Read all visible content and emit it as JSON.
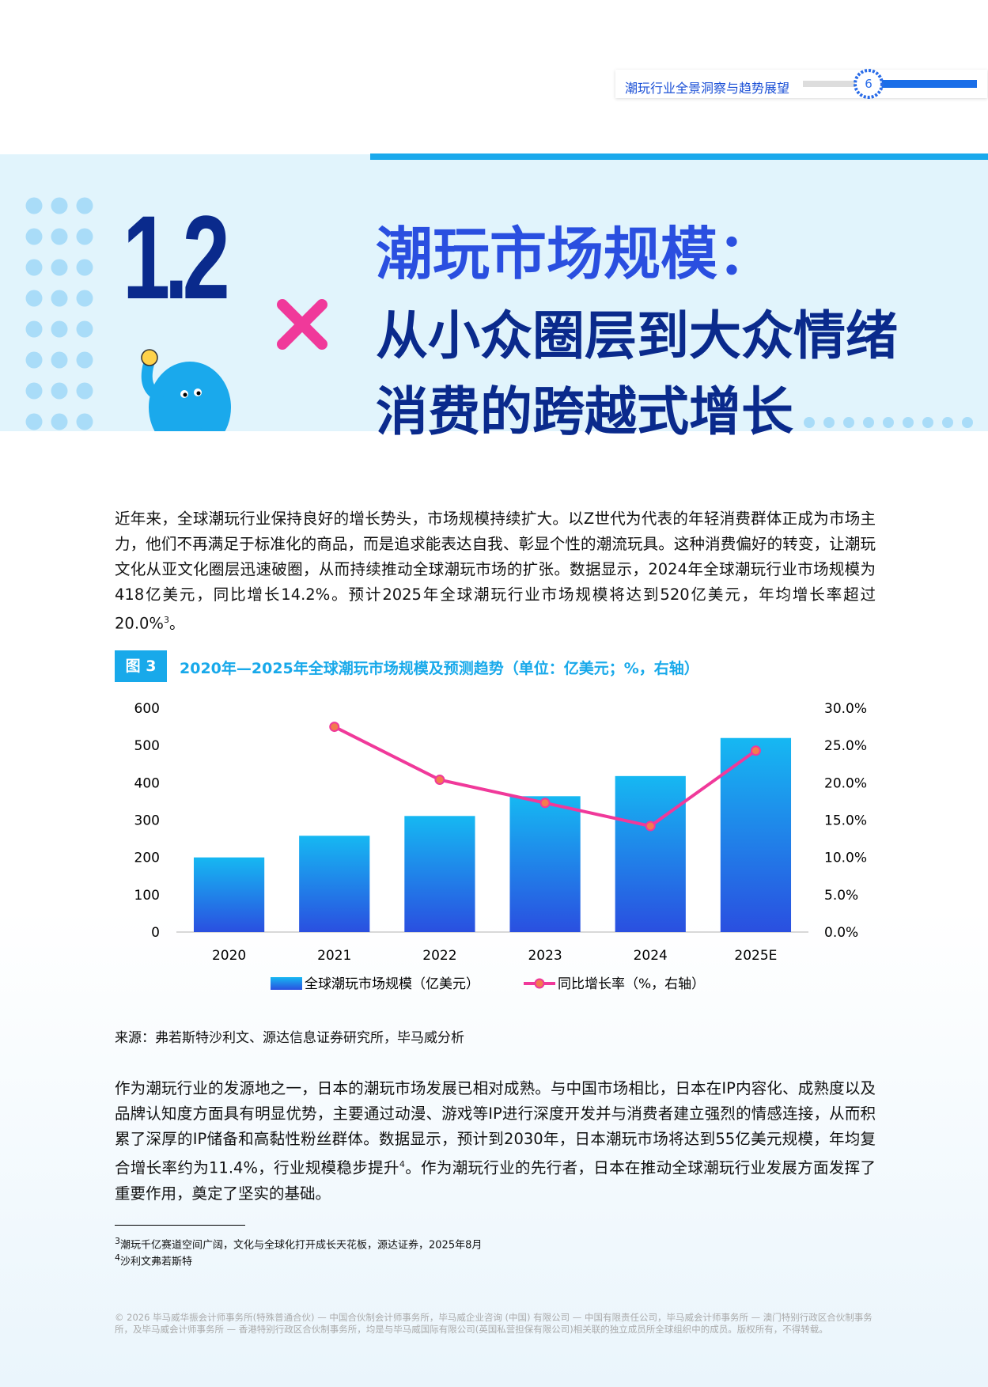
{
  "header": {
    "title": "潮玩行业全景洞察与趋势展望",
    "page": "6"
  },
  "section": {
    "number": "1.2",
    "title_lines": [
      "潮玩市场规模：",
      "从小众圈层到大众情绪",
      "消费的跨越式增长"
    ]
  },
  "paragraphs": [
    {
      "text": "近年来，全球潮玩行业保持良好的增长势头，市场规模持续扩大。以Z世代为代表的年轻消费群体正成为市场主力，他们不再满足于标准化的商品，而是追求能表达自我、彰显个性的潮流玩具。这种消费偏好的转变，让潮玩文化从亚文化圈层迅速破圈，从而持续推动全球潮玩市场的扩张。数据显示，2024年全球潮玩行业市场规模为418亿美元，同比增长14.2%。预计2025年全球潮玩行业市场规模将达到520亿美元，年均增长率超过20.0%",
      "sup": "3",
      "after": "。"
    },
    {
      "text": "作为潮玩行业的发源地之一，日本的潮玩市场发展已相对成熟。与中国市场相比，日本在IP内容化、成熟度以及品牌认知度方面具有明显优势，主要通过动漫、游戏等IP进行深度开发并与消费者建立强烈的情感连接，从而积累了深厚的IP储备和高黏性粉丝群体。数据显示，预计到2030年，日本潮玩市场将达到55亿美元规模，年均复合增长率约为11.4%，行业规模稳步提升",
      "sup": "4",
      "after": "。作为潮玩行业的先行者，日本在推动全球潮玩行业发展方面发挥了重要作用，奠定了坚实的基础。"
    }
  ],
  "figure": {
    "label": "图 3",
    "source": "来源：弗若斯特沙利文、源达信息证券研究所，毕马威分析"
  },
  "chart_data": {
    "type": "bar_line",
    "title": "2020年—2025年全球潮玩市场规模及预测趋势（单位：亿美元；%，右轴）",
    "categories": [
      "2020",
      "2021",
      "2022",
      "2023",
      "2024",
      "2025E"
    ],
    "series": [
      {
        "name": "全球潮玩市场规模（亿美元）",
        "type": "bar",
        "color": [
          "#16b8f2",
          "#2a4fe0"
        ],
        "values": [
          200,
          258,
          311,
          364,
          418,
          520
        ]
      },
      {
        "name": "同比增长率（%，右轴）",
        "type": "line",
        "axis": "y2",
        "color": "#f0399a",
        "marker_color": "#f27b4f",
        "values": [
          null,
          27.5,
          20.4,
          17.3,
          14.2,
          24.3
        ]
      }
    ],
    "ylim": [
      0,
      600
    ],
    "yticks": [
      0,
      100,
      200,
      300,
      400,
      500,
      600
    ],
    "y2lim": [
      0,
      30
    ],
    "y2ticks": [
      {
        "value": 0,
        "label": "0.0%"
      },
      {
        "value": 5,
        "label": "5.0%"
      },
      {
        "value": 10,
        "label": "10.0%"
      },
      {
        "value": 15,
        "label": "15.0%"
      },
      {
        "value": 20,
        "label": "20.0%"
      },
      {
        "value": 25,
        "label": "25.0%"
      },
      {
        "value": 30,
        "label": "30.0%"
      }
    ],
    "legend": "bottom"
  },
  "footnotes": [
    {
      "mark": "3",
      "text": "潮玩千亿赛道空间广阔，文化与全球化打开成长天花板，源达证券，2025年8月"
    },
    {
      "mark": "4",
      "text": "沙利文弗若斯特"
    }
  ],
  "footer": "© 2026 毕马威华振会计师事务所(特殊普通合伙) — 中国合伙制会计师事务所，毕马威企业咨询 (中国) 有限公司 — 中国有限责任公司，毕马威会计师事务所 — 澳门特别行政区合伙制事务所，及毕马威会计师事务所 — 香港特别行政区合伙制事务所，均是与毕马威国际有限公司(英国私营担保有限公司)相关联的独立成员所全球组织中的成员。版权所有，不得转载。"
}
